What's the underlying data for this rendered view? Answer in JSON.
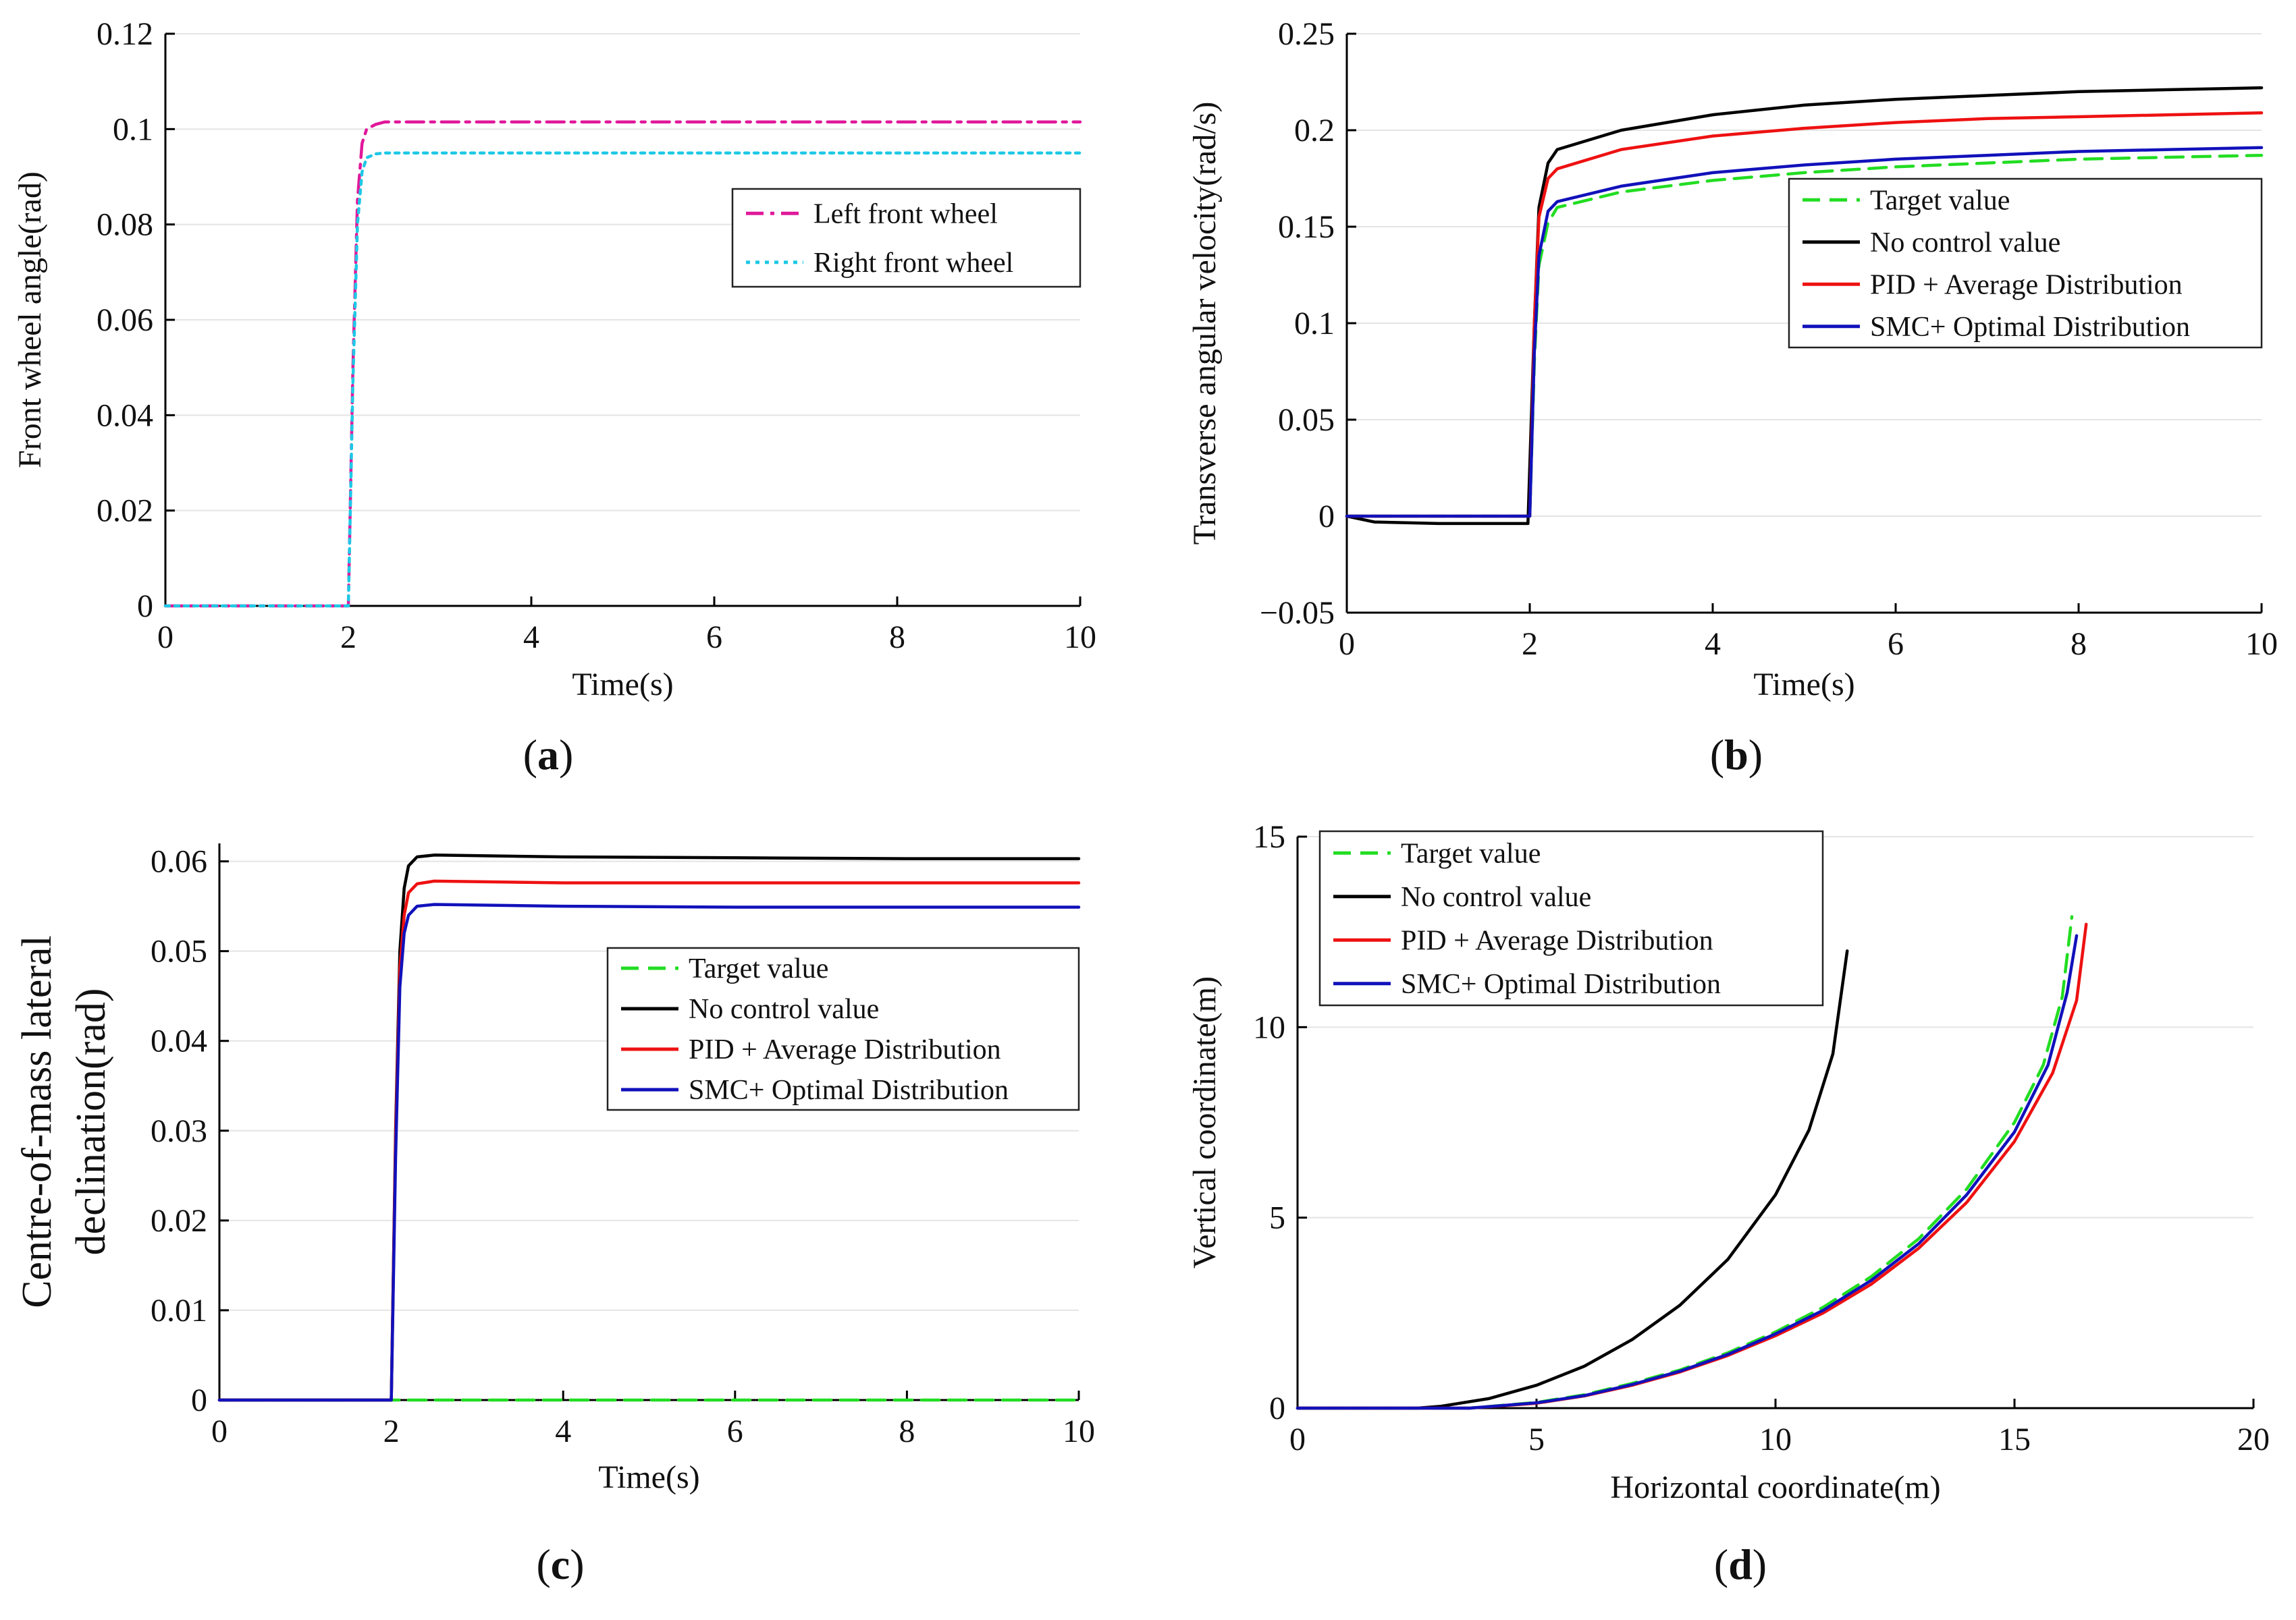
{
  "chart_data": [
    {
      "type": "line",
      "id": "a",
      "panel_label": "a",
      "xlabel": "Time(s)",
      "ylabel": "Front wheel angle(rad)",
      "xlim": [
        0,
        10
      ],
      "ylim": [
        0,
        0.12
      ],
      "xticks": [
        0,
        2,
        4,
        6,
        8,
        10
      ],
      "yticks": [
        0,
        0.02,
        0.04,
        0.06,
        0.08,
        0.1,
        0.12
      ],
      "grid": true,
      "legend": "upper-right",
      "series": [
        {
          "name": "Left front wheel",
          "color": "#e0189a",
          "dash": "dash-dot",
          "x": [
            0,
            2.0,
            2.05,
            2.1,
            2.15,
            2.2,
            2.3,
            2.4,
            10
          ],
          "y": [
            0,
            0,
            0.05,
            0.085,
            0.097,
            0.1,
            0.101,
            0.1015,
            0.1015
          ]
        },
        {
          "name": "Right front wheel",
          "color": "#1ec8e6",
          "dash": "dotted",
          "x": [
            0,
            2.0,
            2.05,
            2.1,
            2.15,
            2.2,
            2.3,
            2.4,
            10
          ],
          "y": [
            0,
            0,
            0.047,
            0.08,
            0.091,
            0.094,
            0.0948,
            0.095,
            0.095
          ]
        }
      ]
    },
    {
      "type": "line",
      "id": "b",
      "panel_label": "b",
      "xlabel": "Time(s)",
      "ylabel": "Transverse angular velocity(rad/s)",
      "xlim": [
        0,
        10
      ],
      "ylim": [
        -0.05,
        0.25
      ],
      "xticks": [
        0,
        2,
        4,
        6,
        8,
        10
      ],
      "yticks": [
        -0.05,
        0,
        0.05,
        0.1,
        0.15,
        0.2,
        0.25
      ],
      "ytick_labels": [
        "−0.05",
        "0",
        "0.05",
        "0.1",
        "0.15",
        "0.2",
        "0.25"
      ],
      "grid": true,
      "legend": "upper-right",
      "series": [
        {
          "name": "Target value",
          "color": "#22dd22",
          "dash": "dashed",
          "x": [
            0,
            2.0,
            2.05,
            2.1,
            2.2,
            2.3,
            3,
            4,
            5,
            6,
            7,
            8,
            9,
            10
          ],
          "y": [
            0,
            0,
            0.08,
            0.13,
            0.152,
            0.16,
            0.168,
            0.174,
            0.178,
            0.181,
            0.183,
            0.185,
            0.186,
            0.187
          ]
        },
        {
          "name": "No control value",
          "color": "#000000",
          "dash": "solid",
          "x": [
            0,
            0.3,
            1,
            1.8,
            1.98,
            2.05,
            2.1,
            2.2,
            2.3,
            3,
            4,
            5,
            6,
            7,
            8,
            9,
            10
          ],
          "y": [
            0,
            -0.003,
            -0.0038,
            -0.0038,
            -0.0038,
            0.1,
            0.16,
            0.183,
            0.19,
            0.2,
            0.208,
            0.213,
            0.216,
            0.218,
            0.22,
            0.221,
            0.222
          ]
        },
        {
          "name": "PID + Average Distribution",
          "color": "#ee1111",
          "dash": "solid",
          "x": [
            0,
            2.0,
            2.05,
            2.1,
            2.2,
            2.3,
            3,
            4,
            5,
            6,
            7,
            8,
            9,
            10
          ],
          "y": [
            0,
            0,
            0.1,
            0.155,
            0.175,
            0.18,
            0.19,
            0.197,
            0.201,
            0.204,
            0.206,
            0.207,
            0.208,
            0.209
          ]
        },
        {
          "name": "SMC+ Optimal Distribution",
          "color": "#1111bb",
          "dash": "solid",
          "x": [
            0,
            2.0,
            2.05,
            2.1,
            2.2,
            2.3,
            3,
            4,
            5,
            6,
            7,
            8,
            9,
            10
          ],
          "y": [
            0,
            0,
            0.085,
            0.135,
            0.158,
            0.163,
            0.171,
            0.178,
            0.182,
            0.185,
            0.187,
            0.189,
            0.19,
            0.191
          ]
        }
      ]
    },
    {
      "type": "line",
      "id": "c",
      "panel_label": "c",
      "xlabel": "Time(s)",
      "ylabel": "Centre-of-mass lateral declination(rad)",
      "ylabel_lines": [
        "Centre-of-mass lateral",
        "declination(rad)"
      ],
      "xlim": [
        0,
        10
      ],
      "ylim": [
        0,
        0.062
      ],
      "xticks": [
        0,
        2,
        4,
        6,
        8,
        10
      ],
      "yticks": [
        0,
        0.01,
        0.02,
        0.03,
        0.04,
        0.05,
        0.06
      ],
      "grid": true,
      "legend": "upper-right",
      "series": [
        {
          "name": "Target value",
          "color": "#22dd22",
          "dash": "dashed",
          "x": [
            0,
            10
          ],
          "y": [
            0,
            0
          ]
        },
        {
          "name": "No control value",
          "color": "#000000",
          "dash": "solid",
          "x": [
            0,
            2.0,
            2.05,
            2.1,
            2.15,
            2.2,
            2.3,
            2.5,
            4,
            6,
            8,
            10
          ],
          "y": [
            0,
            0,
            0.03,
            0.05,
            0.057,
            0.0595,
            0.0605,
            0.0607,
            0.0605,
            0.0604,
            0.0603,
            0.0603
          ]
        },
        {
          "name": "PID + Average Distribution",
          "color": "#ee1111",
          "dash": "solid",
          "x": [
            0,
            2.0,
            2.05,
            2.1,
            2.15,
            2.2,
            2.3,
            2.5,
            4,
            6,
            8,
            10
          ],
          "y": [
            0,
            0,
            0.029,
            0.048,
            0.054,
            0.0565,
            0.0575,
            0.0578,
            0.0576,
            0.0576,
            0.0576,
            0.0576
          ]
        },
        {
          "name": "SMC+ Optimal Distribution",
          "color": "#1111bb",
          "dash": "solid",
          "x": [
            0,
            2.0,
            2.05,
            2.1,
            2.15,
            2.2,
            2.3,
            2.5,
            4,
            6,
            8,
            10
          ],
          "y": [
            0,
            0,
            0.027,
            0.046,
            0.052,
            0.054,
            0.055,
            0.0552,
            0.055,
            0.0549,
            0.0549,
            0.0549
          ]
        }
      ]
    },
    {
      "type": "line",
      "id": "d",
      "panel_label": "d",
      "xlabel": "Horizontal coordinate(m)",
      "ylabel": "Vertical coordinate(m)",
      "xlim": [
        0,
        20
      ],
      "ylim": [
        0,
        15
      ],
      "xticks": [
        0,
        5,
        10,
        15,
        20
      ],
      "yticks": [
        0,
        5,
        10,
        15
      ],
      "grid": true,
      "legend": "upper-left",
      "series": [
        {
          "name": "Target value",
          "color": "#22dd22",
          "dash": "dashed",
          "x": [
            0,
            3.6,
            5,
            6,
            7,
            8,
            9,
            10,
            11,
            12,
            13,
            14,
            15,
            15.6,
            16,
            16.2
          ],
          "y": [
            0,
            0,
            0.15,
            0.35,
            0.65,
            1.0,
            1.45,
            2.0,
            2.65,
            3.45,
            4.45,
            5.75,
            7.5,
            9.0,
            10.8,
            12.9
          ]
        },
        {
          "name": "No control value",
          "color": "#000000",
          "dash": "solid",
          "x": [
            0,
            2.5,
            3,
            4,
            5,
            6,
            7,
            8,
            9,
            10,
            10.7,
            11.2,
            11.5
          ],
          "y": [
            0,
            0,
            0.05,
            0.25,
            0.6,
            1.1,
            1.8,
            2.7,
            3.9,
            5.6,
            7.3,
            9.3,
            12.0
          ]
        },
        {
          "name": "PID + Average Distribution",
          "color": "#ee1111",
          "dash": "solid",
          "x": [
            0,
            3.6,
            5,
            6,
            7,
            8,
            9,
            10,
            11,
            12,
            13,
            14,
            15,
            15.8,
            16.3,
            16.5
          ],
          "y": [
            0,
            0,
            0.13,
            0.32,
            0.6,
            0.95,
            1.38,
            1.9,
            2.5,
            3.25,
            4.2,
            5.4,
            7.0,
            8.8,
            10.7,
            12.7
          ]
        },
        {
          "name": "SMC+ Optimal Distribution",
          "color": "#1111bb",
          "dash": "solid",
          "x": [
            0,
            3.6,
            5,
            6,
            7,
            8,
            9,
            10,
            11,
            12,
            13,
            14,
            15,
            15.7,
            16.1,
            16.3
          ],
          "y": [
            0,
            0,
            0.14,
            0.33,
            0.62,
            0.97,
            1.41,
            1.95,
            2.57,
            3.35,
            4.32,
            5.6,
            7.25,
            9.0,
            10.9,
            12.4
          ]
        }
      ]
    }
  ]
}
